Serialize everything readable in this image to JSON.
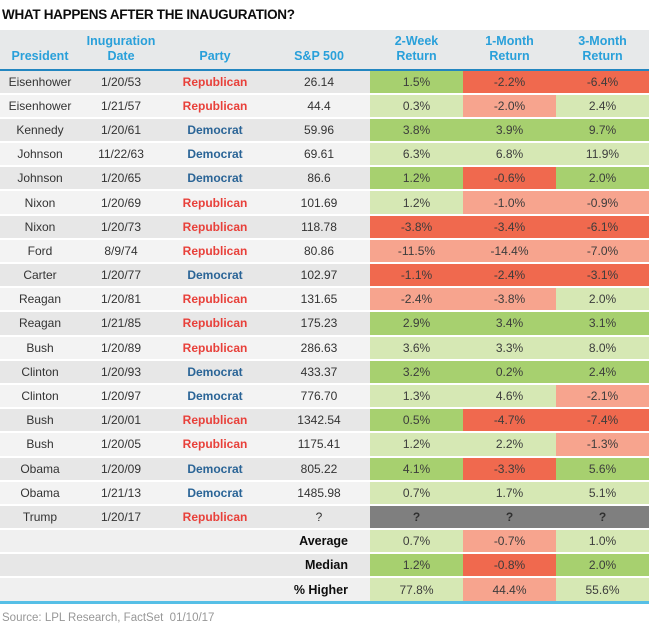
{
  "title": "WHAT HAPPENS AFTER THE INAUGURATION?",
  "source_note": "Source: LPL Research, FactSet  01/10/17",
  "colors": {
    "strong_green": "#a7d06f",
    "light_green": "#d6e8b4",
    "strong_red": "#f0694e",
    "light_red": "#f7a48e",
    "unknown_gray": "#7f7f7f",
    "header_blue": "#29a0da",
    "republican_red": "#e8403a",
    "democrat_blue": "#2a6496",
    "header_rule_blue": "#2386c0",
    "summary_rule_cyan": "#56bfe6",
    "row_gray": "#e7e7e7",
    "row_light_gray": "#f3f3f3"
  },
  "chart_data": {
    "type": "table",
    "title": "WHAT HAPPENS AFTER THE INAUGURATION?",
    "columns": [
      {
        "id": "president",
        "lines": [
          "President"
        ]
      },
      {
        "id": "date",
        "lines": [
          "Inuguration",
          "Date"
        ]
      },
      {
        "id": "party",
        "lines": [
          "Party"
        ]
      },
      {
        "id": "sp500",
        "lines": [
          "S&P 500"
        ]
      },
      {
        "id": "return-2-week",
        "lines": [
          "2-Week",
          "Return"
        ]
      },
      {
        "id": "return-1-month",
        "lines": [
          "1-Month",
          "Return"
        ]
      },
      {
        "id": "return-3-month",
        "lines": [
          "3-Month",
          "Return"
        ]
      }
    ],
    "rows": [
      {
        "president": "Eisenhower",
        "date": "1/20/53",
        "party": "Republican",
        "sp500": "26.14",
        "returns": [
          {
            "v": "1.5%",
            "tone": "g"
          },
          {
            "v": "-2.2%",
            "tone": "r"
          },
          {
            "v": "-6.4%",
            "tone": "r"
          }
        ]
      },
      {
        "president": "Eisenhower",
        "date": "1/21/57",
        "party": "Republican",
        "sp500": "44.4",
        "returns": [
          {
            "v": "0.3%",
            "tone": "lg"
          },
          {
            "v": "-2.0%",
            "tone": "lr"
          },
          {
            "v": "2.4%",
            "tone": "lg"
          }
        ]
      },
      {
        "president": "Kennedy",
        "date": "1/20/61",
        "party": "Democrat",
        "sp500": "59.96",
        "returns": [
          {
            "v": "3.8%",
            "tone": "g"
          },
          {
            "v": "3.9%",
            "tone": "g"
          },
          {
            "v": "9.7%",
            "tone": "g"
          }
        ]
      },
      {
        "president": "Johnson",
        "date": "11/22/63",
        "party": "Democrat",
        "sp500": "69.61",
        "returns": [
          {
            "v": "6.3%",
            "tone": "lg"
          },
          {
            "v": "6.8%",
            "tone": "lg"
          },
          {
            "v": "11.9%",
            "tone": "lg"
          }
        ]
      },
      {
        "president": "Johnson",
        "date": "1/20/65",
        "party": "Democrat",
        "sp500": "86.6",
        "returns": [
          {
            "v": "1.2%",
            "tone": "g"
          },
          {
            "v": "-0.6%",
            "tone": "r"
          },
          {
            "v": "2.0%",
            "tone": "g"
          }
        ]
      },
      {
        "president": "Nixon",
        "date": "1/20/69",
        "party": "Republican",
        "sp500": "101.69",
        "returns": [
          {
            "v": "1.2%",
            "tone": "lg"
          },
          {
            "v": "-1.0%",
            "tone": "lr"
          },
          {
            "v": "-0.9%",
            "tone": "lr"
          }
        ]
      },
      {
        "president": "Nixon",
        "date": "1/20/73",
        "party": "Republican",
        "sp500": "118.78",
        "returns": [
          {
            "v": "-3.8%",
            "tone": "r"
          },
          {
            "v": "-3.4%",
            "tone": "r"
          },
          {
            "v": "-6.1%",
            "tone": "r"
          }
        ]
      },
      {
        "president": "Ford",
        "date": "8/9/74",
        "party": "Republican",
        "sp500": "80.86",
        "returns": [
          {
            "v": "-11.5%",
            "tone": "lr"
          },
          {
            "v": "-14.4%",
            "tone": "lr"
          },
          {
            "v": "-7.0%",
            "tone": "lr"
          }
        ]
      },
      {
        "president": "Carter",
        "date": "1/20/77",
        "party": "Democrat",
        "sp500": "102.97",
        "returns": [
          {
            "v": "-1.1%",
            "tone": "r"
          },
          {
            "v": "-2.4%",
            "tone": "r"
          },
          {
            "v": "-3.1%",
            "tone": "r"
          }
        ]
      },
      {
        "president": "Reagan",
        "date": "1/20/81",
        "party": "Republican",
        "sp500": "131.65",
        "returns": [
          {
            "v": "-2.4%",
            "tone": "lr"
          },
          {
            "v": "-3.8%",
            "tone": "lr"
          },
          {
            "v": "2.0%",
            "tone": "lg"
          }
        ]
      },
      {
        "president": "Reagan",
        "date": "1/21/85",
        "party": "Republican",
        "sp500": "175.23",
        "returns": [
          {
            "v": "2.9%",
            "tone": "g"
          },
          {
            "v": "3.4%",
            "tone": "g"
          },
          {
            "v": "3.1%",
            "tone": "g"
          }
        ]
      },
      {
        "president": "Bush",
        "date": "1/20/89",
        "party": "Republican",
        "sp500": "286.63",
        "returns": [
          {
            "v": "3.6%",
            "tone": "lg"
          },
          {
            "v": "3.3%",
            "tone": "lg"
          },
          {
            "v": "8.0%",
            "tone": "lg"
          }
        ]
      },
      {
        "president": "Clinton",
        "date": "1/20/93",
        "party": "Democrat",
        "sp500": "433.37",
        "returns": [
          {
            "v": "3.2%",
            "tone": "g"
          },
          {
            "v": "0.2%",
            "tone": "g"
          },
          {
            "v": "2.4%",
            "tone": "g"
          }
        ]
      },
      {
        "president": "Clinton",
        "date": "1/20/97",
        "party": "Democrat",
        "sp500": "776.70",
        "returns": [
          {
            "v": "1.3%",
            "tone": "lg"
          },
          {
            "v": "4.6%",
            "tone": "lg"
          },
          {
            "v": "-2.1%",
            "tone": "lr"
          }
        ]
      },
      {
        "president": "Bush",
        "date": "1/20/01",
        "party": "Republican",
        "sp500": "1342.54",
        "returns": [
          {
            "v": "0.5%",
            "tone": "g"
          },
          {
            "v": "-4.7%",
            "tone": "r"
          },
          {
            "v": "-7.4%",
            "tone": "r"
          }
        ]
      },
      {
        "president": "Bush",
        "date": "1/20/05",
        "party": "Republican",
        "sp500": "1175.41",
        "returns": [
          {
            "v": "1.2%",
            "tone": "lg"
          },
          {
            "v": "2.2%",
            "tone": "lg"
          },
          {
            "v": "-1.3%",
            "tone": "lr"
          }
        ]
      },
      {
        "president": "Obama",
        "date": "1/20/09",
        "party": "Democrat",
        "sp500": "805.22",
        "returns": [
          {
            "v": "4.1%",
            "tone": "g"
          },
          {
            "v": "-3.3%",
            "tone": "r"
          },
          {
            "v": "5.6%",
            "tone": "g"
          }
        ]
      },
      {
        "president": "Obama",
        "date": "1/21/13",
        "party": "Democrat",
        "sp500": "1485.98",
        "returns": [
          {
            "v": "0.7%",
            "tone": "lg"
          },
          {
            "v": "1.7%",
            "tone": "lg"
          },
          {
            "v": "5.1%",
            "tone": "lg"
          }
        ]
      },
      {
        "president": "Trump",
        "date": "1/20/17",
        "party": "Republican",
        "sp500": "?",
        "returns": [
          {
            "v": "?",
            "tone": "q"
          },
          {
            "v": "?",
            "tone": "q"
          },
          {
            "v": "?",
            "tone": "q"
          }
        ]
      }
    ],
    "summary": [
      {
        "label": "Average",
        "returns": [
          {
            "v": "0.7%",
            "tone": "lg"
          },
          {
            "v": "-0.7%",
            "tone": "lr"
          },
          {
            "v": "1.0%",
            "tone": "lg"
          }
        ]
      },
      {
        "label": "Median",
        "returns": [
          {
            "v": "1.2%",
            "tone": "g"
          },
          {
            "v": "-0.8%",
            "tone": "r"
          },
          {
            "v": "2.0%",
            "tone": "g"
          }
        ]
      },
      {
        "label": "% Higher",
        "returns": [
          {
            "v": "77.8%",
            "tone": "lg"
          },
          {
            "v": "44.4%",
            "tone": "lr"
          },
          {
            "v": "55.6%",
            "tone": "lg"
          }
        ]
      }
    ]
  }
}
